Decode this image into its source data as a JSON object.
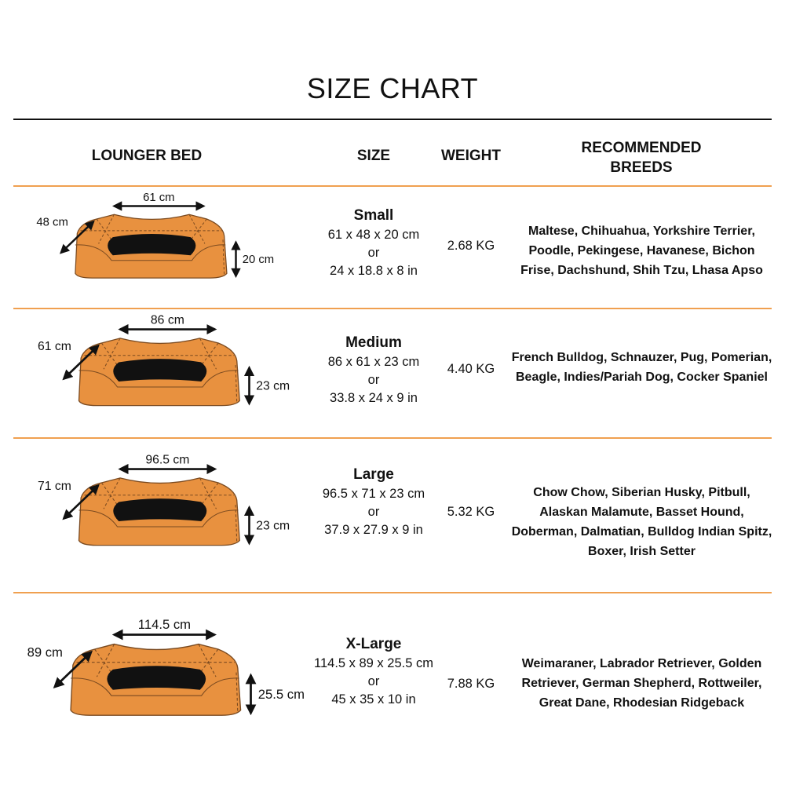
{
  "title": "SIZE CHART",
  "headers": {
    "bed": "LOUNGER BED",
    "size": "SIZE",
    "weight": "WEIGHT",
    "breeds": "RECOMMENDED BREEDS"
  },
  "colors": {
    "accent_line": "#F0A050",
    "bed_fill": "#E8913F",
    "cushion": "#111111"
  },
  "rows": [
    {
      "name": "Small",
      "dims_cm": "61 x 48 x 20 cm",
      "or": "or",
      "dims_in": "24 x 18.8 x 8 in",
      "weight": "2.68 KG",
      "breeds": "Maltese, Chihuahua, Yorkshire Terrier, Poodle, Pekingese, Havanese, Bichon Frise, Dachshund, Shih Tzu, Lhasa Apso",
      "width_label": "61 cm",
      "depth_label": "48 cm",
      "height_label": "20 cm"
    },
    {
      "name": "Medium",
      "dims_cm": "86 x 61 x 23 cm",
      "or": "or",
      "dims_in": "33.8 x 24 x 9 in",
      "weight": "4.40 KG",
      "breeds": "French Bulldog, Schnauzer, Pug, Pomerian, Beagle, Indies/Pariah Dog, Cocker Spaniel",
      "width_label": "86 cm",
      "depth_label": "61 cm",
      "height_label": "23 cm"
    },
    {
      "name": "Large",
      "dims_cm": "96.5 x 71 x 23 cm",
      "or": "or",
      "dims_in": "37.9 x 27.9 x 9 in",
      "weight": "5.32 KG",
      "breeds": "Chow Chow, Siberian Husky, Pitbull, Alaskan Malamute, Basset Hound, Doberman, Dalmatian, Bulldog Indian Spitz, Boxer, Irish Setter",
      "width_label": "96.5 cm",
      "depth_label": "71 cm",
      "height_label": "23 cm"
    },
    {
      "name": "X-Large",
      "dims_cm": "114.5 x 89 x 25.5 cm",
      "or": "or",
      "dims_in": "45 x 35 x 10 in",
      "weight": "7.88 KG",
      "breeds": "Weimaraner, Labrador Retriever, Golden Retriever, German Shepherd, Rottweiler, Great Dane, Rhodesian Ridgeback",
      "width_label": "114.5 cm",
      "depth_label": "89 cm",
      "height_label": "25.5 cm"
    }
  ]
}
